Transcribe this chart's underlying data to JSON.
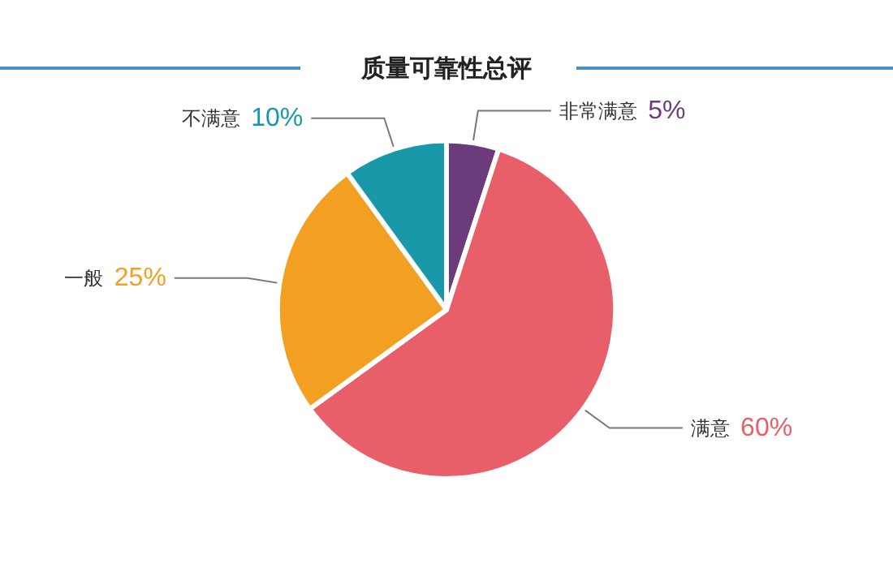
{
  "chart_data": {
    "type": "pie",
    "title": "质量可靠性总评",
    "categories": [
      "非常满意",
      "满意",
      "一般",
      "不满意"
    ],
    "values": [
      5,
      60,
      25,
      10
    ],
    "value_labels": [
      "5%",
      "60%",
      "25%",
      "10%"
    ],
    "colors": [
      "#6b3b7b",
      "#e95f69",
      "#f39f22",
      "#1898a9"
    ],
    "legend": false
  }
}
